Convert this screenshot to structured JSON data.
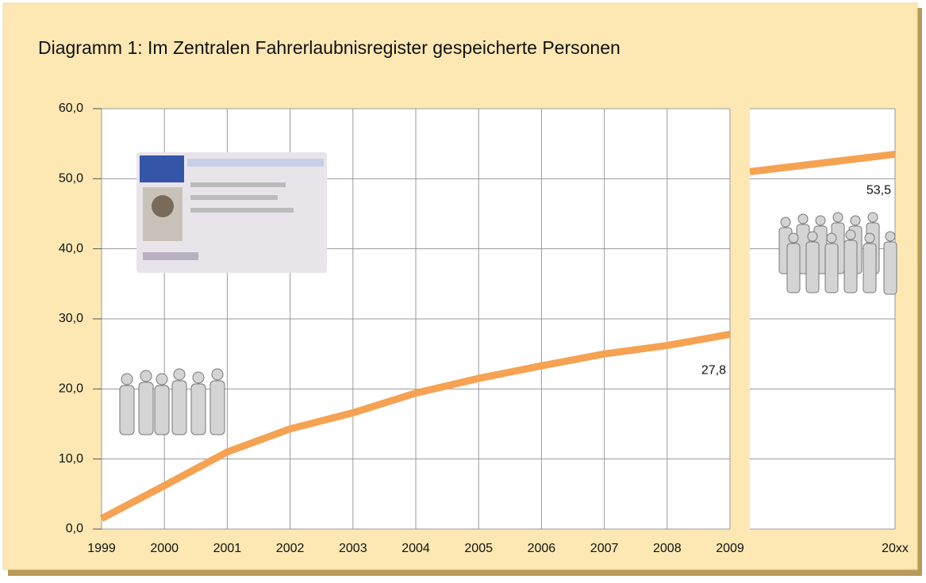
{
  "chart_data": {
    "type": "line",
    "title": "Diagramm 1: Im Zentralen Fahrerlaubnisregister gespeicherte Personen",
    "categories": [
      "1999",
      "2000",
      "2001",
      "2002",
      "2003",
      "2004",
      "2005",
      "2006",
      "2007",
      "2008",
      "2009",
      null,
      null,
      "20xx"
    ],
    "values": [
      1.5,
      6.2,
      11.0,
      14.3,
      16.6,
      19.4,
      21.5,
      23.3,
      25.0,
      26.2,
      27.8,
      null,
      51.0,
      53.5
    ],
    "value_labels": [
      null,
      null,
      null,
      null,
      null,
      null,
      null,
      null,
      null,
      null,
      "27,8",
      null,
      null,
      "53,5"
    ],
    "color": "#f5a253",
    "ylim": [
      0,
      60
    ],
    "yticks": [
      {
        "value": 0,
        "label": "0,0"
      },
      {
        "value": 10,
        "label": "10,0"
      },
      {
        "value": 20,
        "label": "20,0"
      },
      {
        "value": 30,
        "label": "30,0"
      },
      {
        "value": 40,
        "label": "40,0"
      },
      {
        "value": 50,
        "label": "50,0"
      },
      {
        "value": 60,
        "label": "60,0"
      }
    ],
    "grid": true
  }
}
